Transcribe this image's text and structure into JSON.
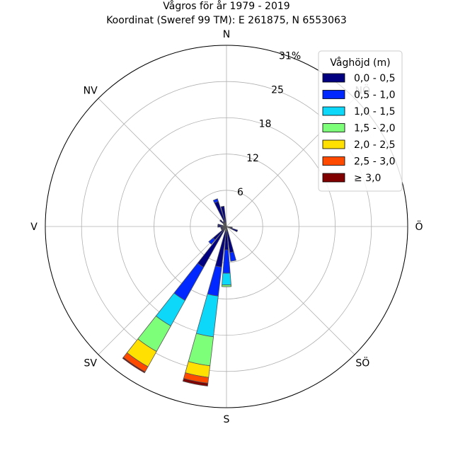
{
  "chart_data": {
    "type": "wind-rose",
    "title": "Vågros för år 1979 - 2019",
    "subtitle": "Koordinat (Sweref 99 TM): E 261875, N 6553063",
    "direction_labels": [
      "N",
      "NV",
      "V",
      "SV",
      "S",
      "SÖ",
      "Ö",
      "NÖ"
    ],
    "radial_tick_labels": [
      "6",
      "12",
      "18",
      "25",
      "31%"
    ],
    "radial_ticks": [
      6.2,
      12.4,
      18.6,
      24.8,
      31
    ],
    "r_max": 31,
    "grid": true,
    "legend": {
      "title": "Våghöjd (m)",
      "placement": "top-right",
      "items": [
        {
          "label": "0,0 - 0,5",
          "color": "#000080"
        },
        {
          "label": "0,5 - 1,0",
          "color": "#0028ff"
        },
        {
          "label": "1,0 - 1,5",
          "color": "#0dd8fa"
        },
        {
          "label": "1,5 - 2,0",
          "color": "#7dff7a"
        },
        {
          "label": "2,0 - 2,5",
          "color": "#ffe000"
        },
        {
          "label": "2,5 - 3,0",
          "color": "#ff4a00"
        },
        {
          "label": "≥ 3,0",
          "color": "#800000"
        }
      ]
    },
    "sectors": [
      {
        "direction_deg": 337.5,
        "cumulative": [
          4.5,
          5.0
        ]
      },
      {
        "direction_deg": 348.75,
        "cumulative": [
          3.5
        ]
      },
      {
        "direction_deg": 101.25,
        "cumulative": [
          1.0
        ]
      },
      {
        "direction_deg": 112.5,
        "cumulative": [
          2.0
        ]
      },
      {
        "direction_deg": 168.75,
        "cumulative": [
          4.5,
          6.0
        ]
      },
      {
        "direction_deg": 180,
        "cumulative": [
          4.0,
          8.0,
          10.0,
          10.3
        ]
      },
      {
        "direction_deg": 191.25,
        "cumulative": [
          7.0,
          12.0,
          19.0,
          24.0,
          26.0,
          27.0,
          27.5
        ]
      },
      {
        "direction_deg": 213.75,
        "cumulative": [
          8.0,
          14.5,
          19.5,
          24.5,
          27.5,
          28.5,
          28.7
        ]
      },
      {
        "direction_deg": 225,
        "cumulative": [
          3.0,
          4.0
        ]
      },
      {
        "direction_deg": 236.25,
        "cumulative": [
          1.0
        ]
      },
      {
        "direction_deg": 247.5,
        "cumulative": [
          1.0
        ]
      },
      {
        "direction_deg": 258.75,
        "cumulative": [
          1.0
        ]
      },
      {
        "direction_deg": 270,
        "cumulative": [
          1.5
        ]
      },
      {
        "direction_deg": 281.25,
        "cumulative": [
          1.5
        ]
      },
      {
        "direction_deg": 303.75,
        "cumulative": [
          0.6
        ]
      },
      {
        "direction_deg": 315,
        "cumulative": [
          1.5
        ]
      },
      {
        "direction_deg": 326.25,
        "cumulative": [
          1.0
        ]
      }
    ]
  }
}
